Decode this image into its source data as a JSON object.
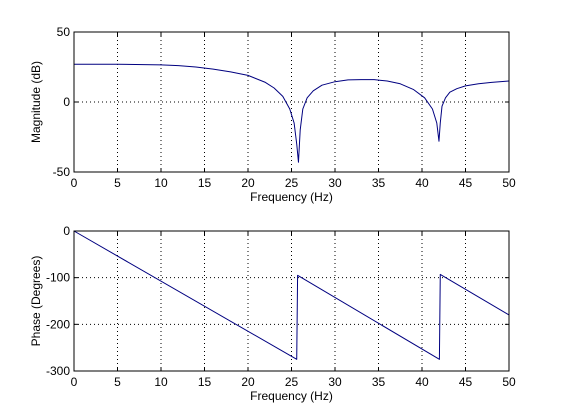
{
  "chart_data": [
    {
      "type": "line",
      "xlabel": "Frequency (Hz)",
      "ylabel": "Magnitude (dB)",
      "xlim": [
        0,
        50
      ],
      "ylim": [
        -50,
        50
      ],
      "xticks": [
        0,
        5,
        10,
        15,
        20,
        25,
        30,
        35,
        40,
        45,
        50
      ],
      "yticks": [
        -50,
        0,
        50
      ],
      "xtick_labels": [
        "0",
        "5",
        "10",
        "15",
        "20",
        "25",
        "30",
        "35",
        "40",
        "45",
        "50"
      ],
      "ytick_labels": [
        "-50",
        "0",
        "50"
      ],
      "grid": true,
      "series": [
        {
          "color": "#000080",
          "x": [
            0,
            5,
            10,
            12,
            14,
            16,
            18,
            20,
            22,
            23,
            24,
            24.8,
            25.3,
            25.6,
            25.8,
            26.0,
            26.3,
            26.8,
            27.5,
            28.5,
            30,
            31.5,
            33,
            34.5,
            36,
            37.5,
            39,
            40.3,
            41.2,
            41.7,
            41.95,
            42.1,
            42.3,
            42.7,
            43.2,
            44,
            45,
            46.5,
            48,
            50
          ],
          "y": [
            27,
            27,
            26.5,
            26,
            25,
            23.5,
            21.5,
            19,
            14,
            10,
            4,
            -5,
            -15,
            -30,
            -43,
            -20,
            -5,
            3,
            8,
            12,
            14.5,
            15.8,
            16,
            16,
            15,
            13,
            9,
            3,
            -5,
            -15,
            -28,
            -15,
            -3,
            3,
            7,
            9.5,
            11.5,
            13,
            14,
            15
          ]
        }
      ]
    },
    {
      "type": "line",
      "xlabel": "Frequency (Hz)",
      "ylabel": "Phase (Degrees)",
      "xlim": [
        0,
        50
      ],
      "ylim": [
        -300,
        0
      ],
      "xticks": [
        0,
        5,
        10,
        15,
        20,
        25,
        30,
        35,
        40,
        45,
        50
      ],
      "yticks": [
        -300,
        -200,
        -100,
        0
      ],
      "xtick_labels": [
        "0",
        "5",
        "10",
        "15",
        "20",
        "25",
        "30",
        "35",
        "40",
        "45",
        "50"
      ],
      "ytick_labels": [
        "-300",
        "-200",
        "-100",
        "0"
      ],
      "grid": true,
      "series": [
        {
          "color": "#000080",
          "x": [
            0,
            25.6,
            25.7,
            42.0,
            42.1,
            50
          ],
          "y": [
            0,
            -275,
            -95,
            -275,
            -93,
            -180
          ]
        }
      ]
    }
  ]
}
